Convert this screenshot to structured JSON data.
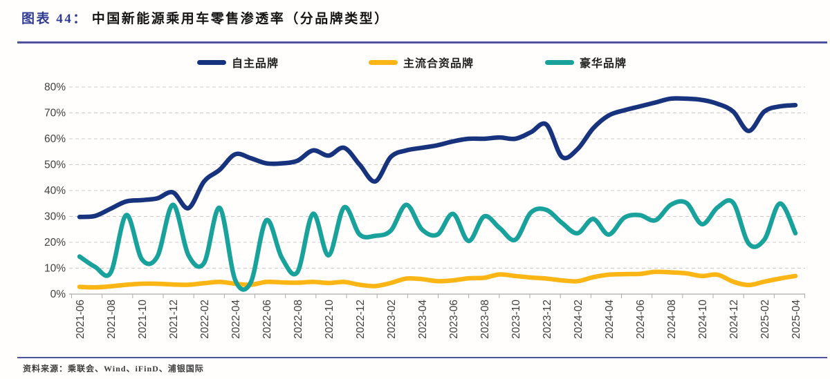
{
  "title": {
    "prefix": "图表 44：",
    "text": "中国新能源乘用车零售渗透率（分品牌类型）"
  },
  "footer": {
    "text": "资料来源：乘联会、Wind、iFinD、浦银国际"
  },
  "colors": {
    "own_brand": "#17337D",
    "joint_venture": "#FBB616",
    "luxury": "#18A29B",
    "divider": "#4D51A0",
    "gridline": "#C9C9C9",
    "axis": "#ABABAB",
    "tick_text": "#3F3F3F",
    "title_prefix": "#2F3A93"
  },
  "chart_data": {
    "type": "line",
    "title": "中国新能源乘用车零售渗透率（分品牌类型）",
    "unit": "%",
    "ylim": [
      0,
      80
    ],
    "y_ticks": [
      "0%",
      "10%",
      "20%",
      "30%",
      "40%",
      "50%",
      "60%",
      "70%",
      "80%"
    ],
    "grid": "horizontal dashed",
    "legend_position": "top",
    "x": [
      "2021-06",
      "2021-07",
      "2021-08",
      "2021-09",
      "2021-10",
      "2021-11",
      "2021-12",
      "2022-01",
      "2022-02",
      "2022-03",
      "2022-04",
      "2022-05",
      "2022-06",
      "2022-07",
      "2022-08",
      "2022-09",
      "2022-10",
      "2022-11",
      "2022-12",
      "2023-01",
      "2023-02",
      "2023-03",
      "2023-04",
      "2023-05",
      "2023-06",
      "2023-07",
      "2023-08",
      "2023-09",
      "2023-10",
      "2023-11",
      "2023-12",
      "2024-01",
      "2024-02",
      "2024-03",
      "2024-04",
      "2024-05",
      "2024-06",
      "2024-07",
      "2024-08",
      "2024-09",
      "2024-10",
      "2024-11",
      "2024-12",
      "2025-01",
      "2025-02",
      "2025-03",
      "2025-04"
    ],
    "x_tick_labels": [
      "2021-06",
      "2021-08",
      "2021-10",
      "2021-12",
      "2022-02",
      "2022-04",
      "2022-06",
      "2022-08",
      "2022-10",
      "2022-12",
      "2023-02",
      "2023-04",
      "2023-06",
      "2023-08",
      "2023-10",
      "2023-12",
      "2024-02",
      "2024-04",
      "2024-06",
      "2024-08",
      "2024-10",
      "2024-12",
      "2025-02",
      "2025-04"
    ],
    "series": [
      {
        "name": "自主品牌",
        "color": "#17337D",
        "values": [
          29.8,
          30.2,
          33,
          35.8,
          36.3,
          37,
          39.3,
          33.2,
          43.5,
          48,
          54,
          52.5,
          50.5,
          50.5,
          51.5,
          55.5,
          53.5,
          56.5,
          50,
          43.5,
          53,
          55.5,
          56.5,
          57.5,
          59,
          60,
          60,
          60.5,
          60,
          62.5,
          65.5,
          53,
          56,
          64,
          69,
          71,
          72.5,
          74,
          75.5,
          75.5,
          75,
          73.5,
          70.5,
          63,
          70.5,
          72.5,
          73
        ]
      },
      {
        "name": "主流合资品牌",
        "color": "#FBB616",
        "values": [
          2.8,
          2.6,
          3.0,
          3.6,
          4.0,
          4.0,
          3.7,
          3.6,
          4.2,
          4.7,
          4.0,
          3.6,
          4.7,
          4.5,
          4.4,
          4.7,
          4.3,
          4.7,
          3.6,
          3.1,
          4.3,
          6.0,
          5.8,
          5.0,
          5.3,
          6.1,
          6.3,
          7.6,
          7.0,
          6.4,
          6.0,
          5.3,
          5.0,
          6.5,
          7.5,
          7.7,
          7.8,
          8.6,
          8.4,
          8.0,
          7.0,
          7.5,
          4.8,
          3.5,
          4.8,
          6.0,
          7.0
        ]
      },
      {
        "name": "豪华品牌",
        "color": "#18A29B",
        "values": [
          14.5,
          10.5,
          8.3,
          30.5,
          13.5,
          14.5,
          34.5,
          15,
          12,
          33.3,
          5.5,
          4.5,
          28.5,
          14,
          8.5,
          31,
          15,
          33.5,
          23,
          22.5,
          24.5,
          34.5,
          25,
          23,
          31,
          20.5,
          30,
          25.5,
          21,
          31.5,
          32.5,
          27.5,
          23.5,
          29,
          23,
          29.5,
          30.5,
          28.5,
          34.5,
          35.2,
          27,
          33.5,
          35.3,
          19.5,
          21,
          35,
          23.5
        ]
      }
    ]
  }
}
